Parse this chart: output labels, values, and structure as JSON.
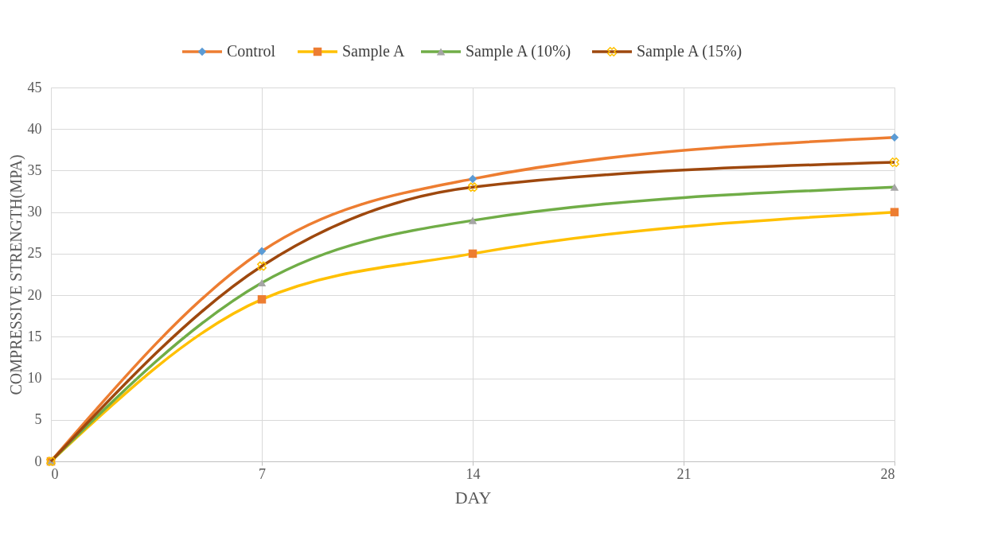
{
  "chart_data": {
    "type": "line",
    "xlabel": "DAY",
    "ylabel": "COMPRESSIVE STRENGTH(MPA)",
    "x": [
      0,
      7,
      14,
      28
    ],
    "series": [
      {
        "name": "Control",
        "color": "#ed7d31",
        "marker": "diamond",
        "colors": [
          "#5b9bd5",
          "#5b9bd5",
          "#5b9bd5",
          "#5b9bd5"
        ],
        "values": [
          0,
          25.3,
          34,
          39
        ]
      },
      {
        "name": "Sample A",
        "color": "#ffc000",
        "marker": "square",
        "colors": [
          "#ed7d31",
          "#ed7d31",
          "#ed7d31",
          "#ed7d31"
        ],
        "values": [
          0,
          19.5,
          25,
          30
        ]
      },
      {
        "name": "Sample A (10%)",
        "color": "#70ad47",
        "marker": "triangle",
        "colors": [
          "#a5a5a5",
          "#a5a5a5",
          "#a5a5a5",
          "#a5a5a5"
        ],
        "values": [
          0,
          21.5,
          29,
          33
        ]
      },
      {
        "name": "Sample A (15%)",
        "color": "#9e480e",
        "marker": "cross",
        "colors": [
          "#ffc000",
          "#ffc000",
          "#ffc000",
          "#ffc000"
        ],
        "values": [
          0,
          23.5,
          33,
          36
        ]
      }
    ],
    "xlim": [
      0,
      28
    ],
    "xticks": [
      0,
      7,
      14,
      21,
      28
    ],
    "ylim": [
      0,
      45
    ],
    "yticks": [
      0,
      5,
      10,
      15,
      20,
      25,
      30,
      35,
      40,
      45
    ],
    "grid": true,
    "legend": "top",
    "line_style": "solid"
  }
}
